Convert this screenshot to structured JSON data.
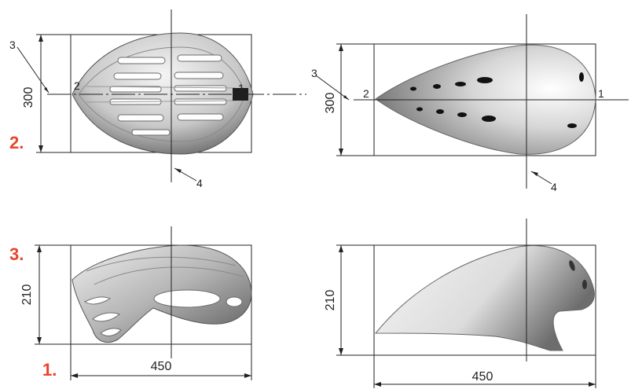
{
  "colors": {
    "accent": "#e8442d",
    "line": "#222222",
    "shade_dark": "#5f5f5f",
    "shade_light": "#eeeeee"
  },
  "labels": {
    "fig_1": "1.",
    "fig_2": "2.",
    "fig_3": "3."
  },
  "dims": {
    "top_left_height": "300",
    "top_right_height": "300",
    "bottom_left_height": "210",
    "bottom_right_height": "210",
    "bottom_left_width": "450",
    "bottom_right_width": "450"
  },
  "callouts": {
    "tl_3": "3",
    "tl_2": "2",
    "tl_1": "1",
    "tl_4": "4",
    "tr_3": "3",
    "tr_2": "2",
    "tr_1": "1",
    "tr_4": "4"
  }
}
